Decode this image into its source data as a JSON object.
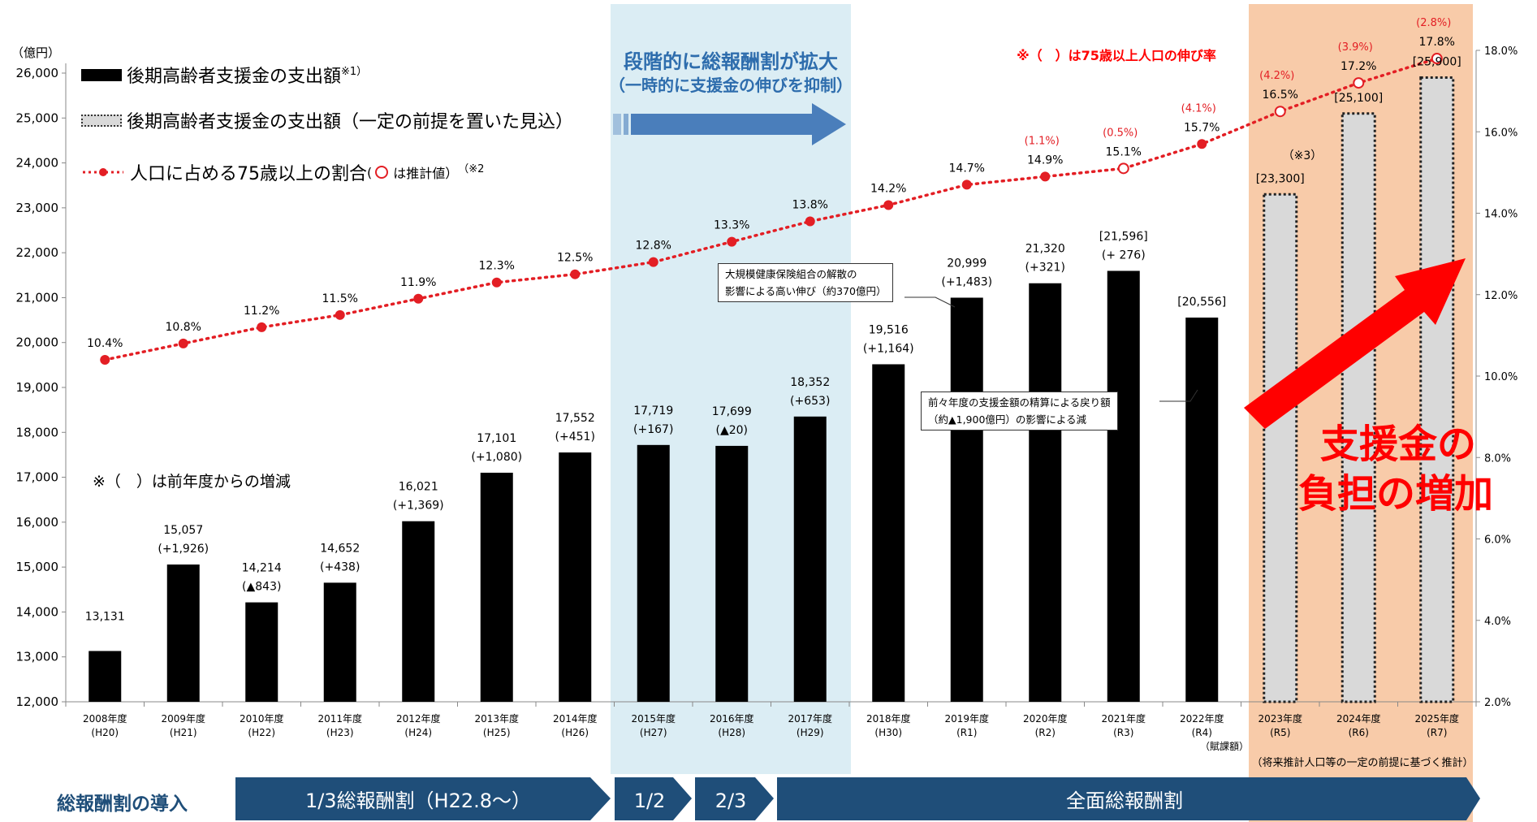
{
  "colors": {
    "bar": "#000000",
    "projected_bar": "#d9d9d9",
    "line": "#e31e24",
    "phase_band": "#dbedf4",
    "projection_band": "#f8cba9",
    "bottom_band": "#1f4e79",
    "arrow_blue": "#4a7ebb",
    "big_arrow": "#ff0000"
  },
  "legend": {
    "bar_label": "後期高齢者支援金の支出額",
    "bar_note": "※1）",
    "projected_label": "後期高齢者支援金の支出額（一定の前提を置いた見込）",
    "line_label": "人口に占める75歳以上の割合",
    "line_paren_open": "(",
    "line_estimate": "は推計値）",
    "line_note": "（※2"
  },
  "axis": {
    "left_unit": "（億円）",
    "left_ticks": [
      "26,000",
      "25,000",
      "24,000",
      "23,000",
      "22,000",
      "21,000",
      "20,000",
      "19,000",
      "18,000",
      "17,000",
      "16,000",
      "15,000",
      "14,000",
      "13,000",
      "12,000"
    ],
    "right_ticks": [
      "18.0%",
      "16.0%",
      "14.0%",
      "12.0%",
      "10.0%",
      "8.0%",
      "6.0%",
      "4.0%",
      "2.0%"
    ]
  },
  "annotations": {
    "phase_title_1": "段階的に総報酬割が拡大",
    "phase_title_2": "（一時的に支援金の伸びを抑制）",
    "rate_note": "※（　）は75歳以上人口の伸び率",
    "diff_note": "※（　）は前年度からの増減",
    "note3": "（※3）",
    "callout1_line1": "大規模健康保険組合の解散の",
    "callout1_line2": "影響による高い伸び（約370億円）",
    "callout2_line1": "前々年度の支援金額の精算による戻り額",
    "callout2_line2": "（約▲1,900億円）の影響による減",
    "big_text_1": "支援金の",
    "big_text_2": "負担の増加",
    "future_note": "（将来推計人口等の一定の前提に基づく推計）",
    "fy2022_sub": "（賦課額）"
  },
  "bottom": {
    "intro": "総報酬割の導入",
    "stage1": "1/3総報酬割（H22.8～）",
    "stage2": "1/2",
    "stage3": "2/3",
    "stage4": "全面総報酬割"
  },
  "chart_data": {
    "type": "bar",
    "categories": [
      "2008年度",
      "2009年度",
      "2010年度",
      "2011年度",
      "2012年度",
      "2013年度",
      "2014年度",
      "2015年度",
      "2016年度",
      "2017年度",
      "2018年度",
      "2019年度",
      "2020年度",
      "2021年度",
      "2022年度",
      "2023年度",
      "2024年度",
      "2025年度"
    ],
    "sublabels": [
      "(H20)",
      "(H21)",
      "(H22)",
      "(H23)",
      "(H24)",
      "(H25)",
      "(H26)",
      "(H27)",
      "(H28)",
      "(H29)",
      "(H30)",
      "(R1)",
      "(R2)",
      "(R3)",
      "(R4)",
      "(R5)",
      "(R6)",
      "(R7)"
    ],
    "ylim": [
      12000,
      26000
    ],
    "y2lim": [
      2.0,
      18.0
    ],
    "series": [
      {
        "name": "後期高齢者支援金の支出額",
        "values": [
          13131,
          15057,
          14214,
          14652,
          16021,
          17101,
          17552,
          17719,
          17699,
          18352,
          19516,
          20999,
          21320,
          21596,
          20556,
          23300,
          25100,
          25900
        ],
        "projected": [
          false,
          false,
          false,
          false,
          false,
          false,
          false,
          false,
          false,
          false,
          false,
          false,
          false,
          false,
          false,
          true,
          true,
          true
        ],
        "labels": [
          "13,131",
          "15,057",
          "14,214",
          "14,652",
          "16,021",
          "17,101",
          "17,552",
          "17,719",
          "17,699",
          "18,352",
          "19,516",
          "20,999",
          "21,320",
          "[21,596]",
          "[20,556]",
          "[23,300]",
          "[25,100]",
          "[25,900]"
        ],
        "changes": [
          "",
          "(+1,926)",
          "(▲843)",
          "(+438)",
          "(+1,369)",
          "(+1,080)",
          "(+451)",
          "(+167)",
          "(▲20)",
          "(+653)",
          "(+1,164)",
          "(+1,483)",
          "(+321)",
          "(+ 276)",
          "",
          "",
          "",
          ""
        ]
      },
      {
        "name": "人口に占める75歳以上の割合",
        "axis": "right",
        "values": [
          10.4,
          10.8,
          11.2,
          11.5,
          11.9,
          12.3,
          12.5,
          12.8,
          13.3,
          13.8,
          14.2,
          14.7,
          14.9,
          15.1,
          15.7,
          16.5,
          17.2,
          17.8
        ],
        "estimated": [
          false,
          false,
          false,
          false,
          false,
          false,
          false,
          false,
          false,
          false,
          false,
          false,
          false,
          true,
          false,
          true,
          true,
          true
        ],
        "growth": [
          "",
          "",
          "",
          "",
          "",
          "",
          "",
          "",
          "",
          "",
          "",
          "",
          "(1.1%)",
          "(0.5%)",
          "(4.1%)",
          "(4.2%)",
          "(3.9%)",
          "(2.8%)"
        ]
      }
    ]
  }
}
